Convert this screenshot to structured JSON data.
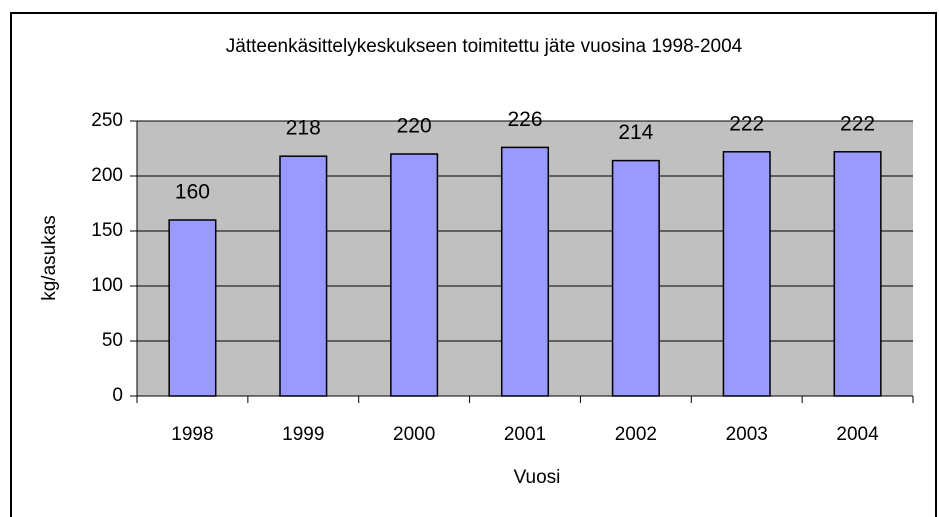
{
  "chart_data": {
    "type": "bar",
    "title": "Jätteenkäsittelykeskukseen toimitettu jäte vuosina 1998-2004",
    "x_label": "Vuosi",
    "y_label": "kg/asukas",
    "categories": [
      "1998",
      "1999",
      "2000",
      "2001",
      "2002",
      "2003",
      "2004"
    ],
    "values": [
      160,
      218,
      220,
      226,
      214,
      222,
      222
    ],
    "color": "#9999ff",
    "ylim": [
      0,
      250
    ],
    "yticks": [
      0,
      50,
      100,
      150,
      200,
      250
    ],
    "grid": true
  }
}
